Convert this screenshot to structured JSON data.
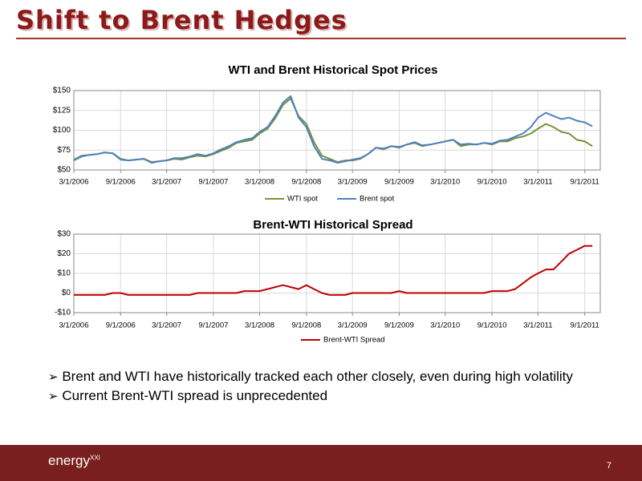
{
  "header": {
    "title": "Shift to Brent Hedges"
  },
  "chart_data": [
    {
      "type": "line",
      "title": "WTI and Brent Historical Spot Prices",
      "x": [
        "3/1/2006",
        "4/1/2006",
        "5/1/2006",
        "6/1/2006",
        "7/1/2006",
        "8/1/2006",
        "9/1/2006",
        "10/1/2006",
        "11/1/2006",
        "12/1/2006",
        "1/1/2007",
        "2/1/2007",
        "3/1/2007",
        "4/1/2007",
        "5/1/2007",
        "6/1/2007",
        "7/1/2007",
        "8/1/2007",
        "9/1/2007",
        "10/1/2007",
        "11/1/2007",
        "12/1/2007",
        "1/1/2008",
        "2/1/2008",
        "3/1/2008",
        "4/1/2008",
        "5/1/2008",
        "6/1/2008",
        "7/1/2008",
        "8/1/2008",
        "9/1/2008",
        "10/1/2008",
        "11/1/2008",
        "12/1/2008",
        "1/1/2009",
        "2/1/2009",
        "3/1/2009",
        "4/1/2009",
        "5/1/2009",
        "6/1/2009",
        "7/1/2009",
        "8/1/2009",
        "9/1/2009",
        "10/1/2009",
        "11/1/2009",
        "12/1/2009",
        "1/1/2010",
        "2/1/2010",
        "3/1/2010",
        "4/1/2010",
        "5/1/2010",
        "6/1/2010",
        "7/1/2010",
        "8/1/2010",
        "9/1/2010",
        "10/1/2010",
        "11/1/2010",
        "12/1/2010",
        "1/1/2011",
        "2/1/2011",
        "3/1/2011",
        "4/1/2011",
        "5/1/2011",
        "6/1/2011",
        "7/1/2011",
        "8/1/2011",
        "9/1/2011",
        "10/1/2011"
      ],
      "series": [
        {
          "name": "WTI spot",
          "color": "#77933c",
          "values": [
            63,
            68,
            69,
            70,
            72,
            71,
            64,
            62,
            63,
            64,
            60,
            61,
            62,
            64,
            63,
            66,
            68,
            67,
            70,
            74,
            78,
            84,
            86,
            88,
            96,
            102,
            115,
            132,
            140,
            118,
            108,
            85,
            68,
            64,
            60,
            62,
            62,
            64,
            70,
            78,
            76,
            80,
            78,
            82,
            84,
            80,
            82,
            84,
            86,
            88,
            80,
            82,
            82,
            84,
            82,
            86,
            86,
            90,
            92,
            96,
            102,
            108,
            104,
            98,
            96,
            88,
            86,
            80
          ]
        },
        {
          "name": "Brent spot",
          "color": "#4f81bd",
          "values": [
            62,
            67,
            69,
            70,
            72,
            71,
            63,
            62,
            63,
            64,
            59,
            61,
            62,
            65,
            65,
            67,
            70,
            68,
            71,
            76,
            80,
            85,
            88,
            90,
            98,
            104,
            118,
            135,
            143,
            116,
            104,
            80,
            64,
            62,
            59,
            61,
            63,
            65,
            70,
            78,
            77,
            80,
            79,
            82,
            85,
            81,
            82,
            84,
            86,
            88,
            82,
            83,
            82,
            84,
            83,
            87,
            88,
            92,
            96,
            104,
            116,
            122,
            118,
            114,
            116,
            112,
            110,
            105
          ]
        }
      ],
      "xlim": [
        "3/1/2006",
        "11/1/2011"
      ],
      "xticks": [
        "3/1/2006",
        "9/1/2006",
        "3/1/2007",
        "9/1/2007",
        "3/1/2008",
        "9/1/2008",
        "3/1/2009",
        "9/1/2009",
        "3/1/2010",
        "9/1/2010",
        "3/1/2011",
        "9/1/2011"
      ],
      "ylim": [
        50,
        150
      ],
      "yticks": [
        {
          "value": 50,
          "label": "$50"
        },
        {
          "value": 75,
          "label": "$75"
        },
        {
          "value": 100,
          "label": "$100"
        },
        {
          "value": 125,
          "label": "$125"
        },
        {
          "value": 150,
          "label": "$150"
        }
      ],
      "grid": true,
      "legend": "bottom"
    },
    {
      "type": "line",
      "title": "Brent-WTI Historical Spread",
      "x": [
        "3/1/2006",
        "4/1/2006",
        "5/1/2006",
        "6/1/2006",
        "7/1/2006",
        "8/1/2006",
        "9/1/2006",
        "10/1/2006",
        "11/1/2006",
        "12/1/2006",
        "1/1/2007",
        "2/1/2007",
        "3/1/2007",
        "4/1/2007",
        "5/1/2007",
        "6/1/2007",
        "7/1/2007",
        "8/1/2007",
        "9/1/2007",
        "10/1/2007",
        "11/1/2007",
        "12/1/2007",
        "1/1/2008",
        "2/1/2008",
        "3/1/2008",
        "4/1/2008",
        "5/1/2008",
        "6/1/2008",
        "7/1/2008",
        "8/1/2008",
        "9/1/2008",
        "10/1/2008",
        "11/1/2008",
        "12/1/2008",
        "1/1/2009",
        "2/1/2009",
        "3/1/2009",
        "4/1/2009",
        "5/1/2009",
        "6/1/2009",
        "7/1/2009",
        "8/1/2009",
        "9/1/2009",
        "10/1/2009",
        "11/1/2009",
        "12/1/2009",
        "1/1/2010",
        "2/1/2010",
        "3/1/2010",
        "4/1/2010",
        "5/1/2010",
        "6/1/2010",
        "7/1/2010",
        "8/1/2010",
        "9/1/2010",
        "10/1/2010",
        "11/1/2010",
        "12/1/2010",
        "1/1/2011",
        "2/1/2011",
        "3/1/2011",
        "4/1/2011",
        "5/1/2011",
        "6/1/2011",
        "7/1/2011",
        "8/1/2011",
        "9/1/2011",
        "10/1/2011"
      ],
      "series": [
        {
          "name": "Brent-WTI Spread",
          "color": "#c00000",
          "values": [
            -1,
            -1,
            -1,
            -1,
            -1,
            0,
            0,
            -1,
            -1,
            -1,
            -1,
            -1,
            -1,
            -1,
            -1,
            -1,
            0,
            0,
            0,
            0,
            0,
            0,
            1,
            1,
            1,
            2,
            3,
            4,
            3,
            2,
            4,
            2,
            0,
            -1,
            -1,
            -1,
            0,
            0,
            0,
            0,
            0,
            0,
            1,
            0,
            0,
            0,
            0,
            0,
            0,
            0,
            0,
            0,
            0,
            0,
            1,
            1,
            1,
            2,
            5,
            8,
            10,
            12,
            12,
            16,
            20,
            22,
            24,
            24
          ]
        }
      ],
      "xlim": [
        "3/1/2006",
        "11/1/2011"
      ],
      "xticks": [
        "3/1/2006",
        "9/1/2006",
        "3/1/2007",
        "9/1/2007",
        "3/1/2008",
        "9/1/2008",
        "3/1/2009",
        "9/1/2009",
        "3/1/2010",
        "9/1/2010",
        "3/1/2011",
        "9/1/2011"
      ],
      "ylim": [
        -10,
        30
      ],
      "yticks": [
        {
          "value": -10,
          "label": "-$10"
        },
        {
          "value": 0,
          "label": "$0"
        },
        {
          "value": 10,
          "label": "$10"
        },
        {
          "value": 20,
          "label": "$20"
        },
        {
          "value": 30,
          "label": "$30"
        }
      ],
      "grid": true,
      "legend": "bottom"
    }
  ],
  "bullets": [
    "Brent and WTI have historically tracked each other closely, even during high volatility",
    "Current Brent-WTI spread is unprecedented"
  ],
  "footer": {
    "logo": "energy",
    "logo_mark": "XXI",
    "page": "7"
  }
}
